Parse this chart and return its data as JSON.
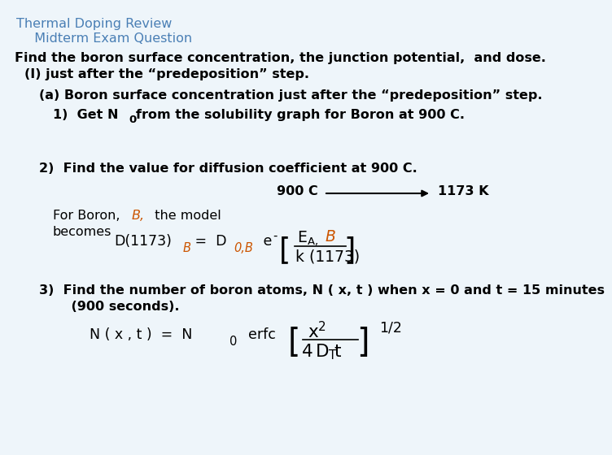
{
  "bg_color": "#eef5fa",
  "title_color": "#4a7fb5",
  "body_color": "#000000",
  "orange_color": "#cc5500",
  "title1": "Thermal Doping Review",
  "title2": "  Midterm Exam Question",
  "line1": "Find the boron surface concentration, the junction potential,  and dose.",
  "line2": "(I) just after the “predeposition” step.",
  "line3": "(a) Boron surface concentration just after the “predeposition” step.",
  "line4a": "1)  Get N",
  "line4b": "0",
  "line4c": "from the solubility graph for Boron at 900 C.",
  "line5": "2)  Find the value for diffusion coefficient at 900 C.",
  "arrow_label_left": "900 C",
  "arrow_label_right": "1173 K",
  "line6a": "For Boron, ",
  "line6b": "B,",
  "line6c": "  the model",
  "line7": "becomes",
  "line9": "3)  Find the number of boron atoms, N ( x, t ) when x = 0 and t = 15 minutes",
  "line10": "    (900 seconds)."
}
